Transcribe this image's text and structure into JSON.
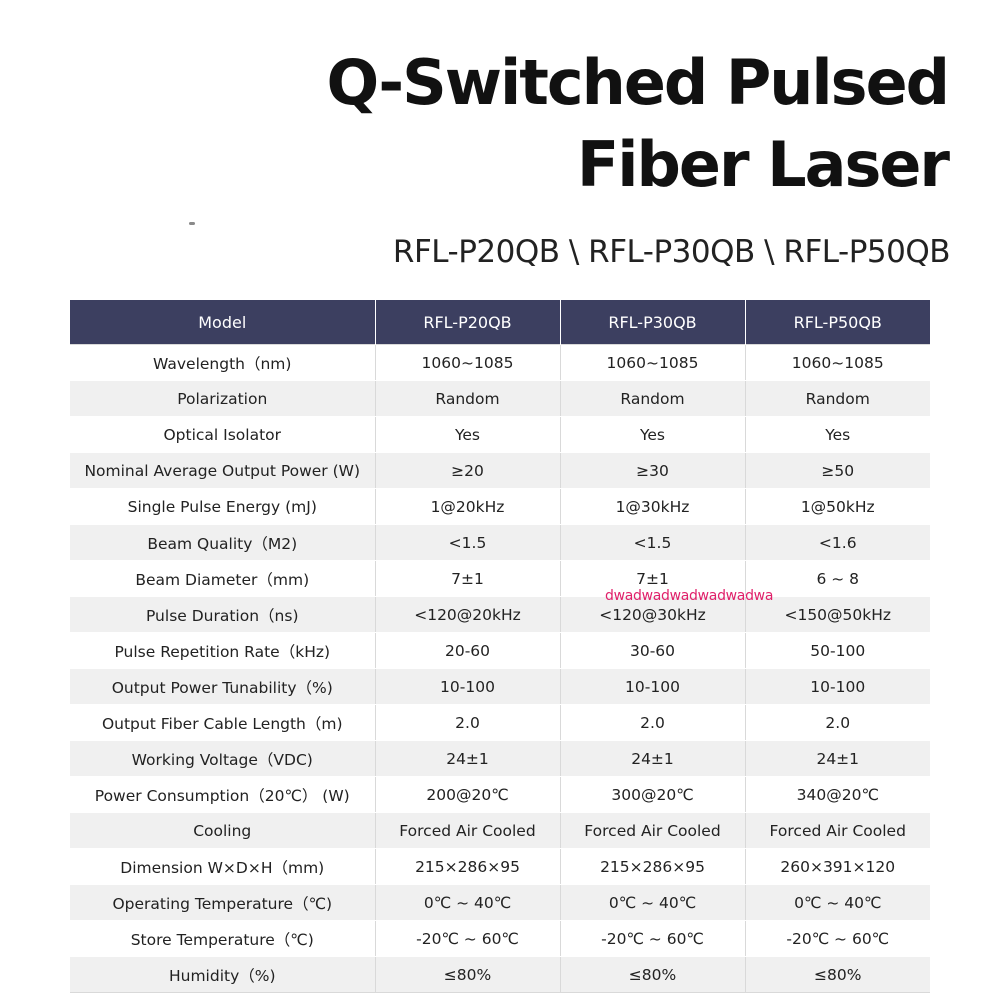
{
  "title_line1": "Q-Switched Pulsed",
  "title_line2": "Fiber Laser",
  "subtitle": "RFL-P20QB \\ RFL-P30QB \\ RFL-P50QB",
  "watermark": "dwadwadwadwadwadwa",
  "table": {
    "headers": [
      "Model",
      "RFL-P20QB",
      "RFL-P30QB",
      "RFL-P50QB"
    ],
    "rows": [
      [
        "Wavelength（nm)",
        "1060~1085",
        "1060~1085",
        "1060~1085"
      ],
      [
        "Polarization",
        "Random",
        "Random",
        "Random"
      ],
      [
        "Optical Isolator",
        "Yes",
        "Yes",
        "Yes"
      ],
      [
        "Nominal Average Output Power (W)",
        "≥20",
        "≥30",
        "≥50"
      ],
      [
        "Single Pulse Energy (mJ)",
        "1@20kHz",
        "1@30kHz",
        "1@50kHz"
      ],
      [
        "Beam Quality（M2)",
        "<1.5",
        "<1.5",
        "<1.6"
      ],
      [
        "Beam Diameter（mm)",
        "7±1",
        "7±1",
        "6 ~ 8"
      ],
      [
        "Pulse Duration（ns)",
        "<120@20kHz",
        "<120@30kHz",
        "<150@50kHz"
      ],
      [
        "Pulse Repetition Rate（kHz)",
        "20-60",
        "30-60",
        "50-100"
      ],
      [
        "Output Power Tunability（%)",
        "10-100",
        "10-100",
        "10-100"
      ],
      [
        "Output Fiber Cable Length（m)",
        "2.0",
        "2.0",
        "2.0"
      ],
      [
        "Working Voltage（VDC)",
        "24±1",
        "24±1",
        "24±1"
      ],
      [
        "Power Consumption（20℃） (W)",
        "200@20℃",
        "300@20℃",
        "340@20℃"
      ],
      [
        "Cooling",
        "Forced Air Cooled",
        "Forced Air Cooled",
        "Forced Air Cooled"
      ],
      [
        "Dimension W×D×H（mm)",
        "215×286×95",
        "215×286×95",
        "260×391×120"
      ],
      [
        "Operating Temperature（℃)",
        "0℃ ~ 40℃",
        "0℃ ~ 40℃",
        "0℃ ~ 40℃"
      ],
      [
        "Store Temperature（℃)",
        "-20℃ ~ 60℃",
        "-20℃ ~ 60℃",
        "-20℃ ~ 60℃"
      ],
      [
        "Humidity（%)",
        "≤80%",
        "≤80%",
        "≤80%"
      ]
    ]
  }
}
